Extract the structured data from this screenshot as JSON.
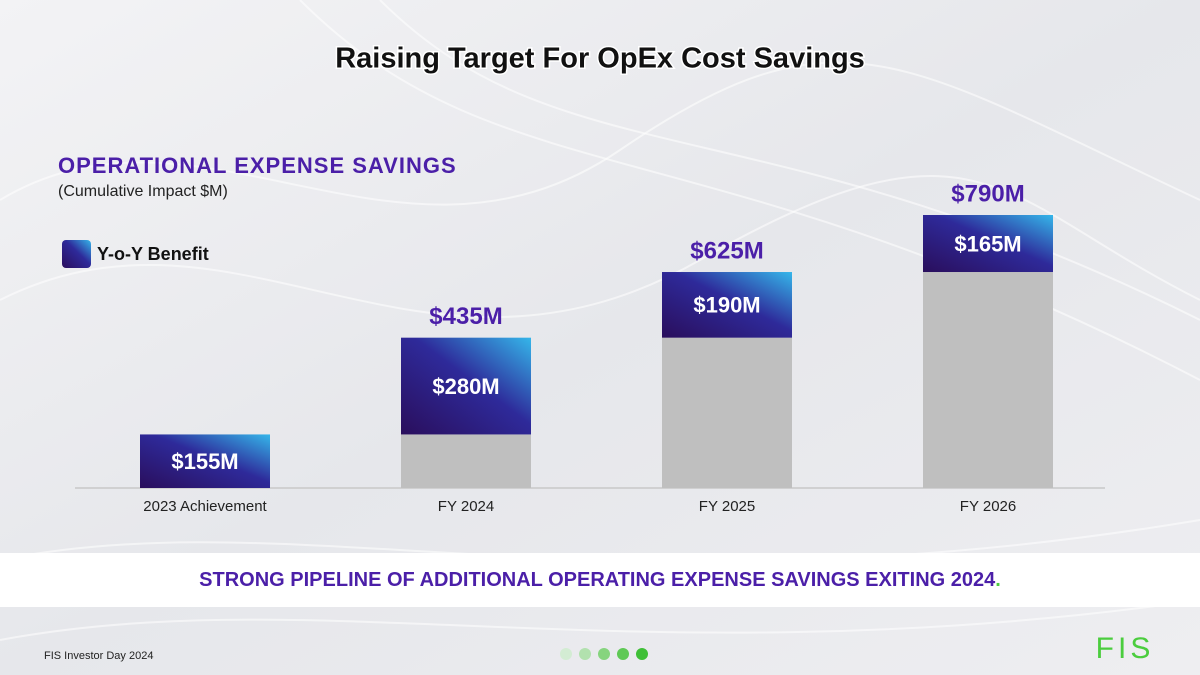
{
  "chart_data": {
    "type": "stacked_bar",
    "title": "Raising Target For OpEx Cost Savings",
    "subtitle": "OPERATIONAL EXPENSE SAVINGS",
    "note": "(Cumulative Impact $M)",
    "categories": [
      "2023 Achievement",
      "FY 2024",
      "FY 2025",
      "FY 2026"
    ],
    "series": [
      {
        "color": "#bfbfbf",
        "values": [
          0,
          155,
          435,
          625
        ]
      },
      {
        "name": "Y-o-Y Benefit",
        "color": "#2e2a9a",
        "values": [
          155,
          280,
          190,
          165
        ],
        "value_labels": [
          "$155M",
          "$280M",
          "$190M",
          "$165M"
        ]
      }
    ],
    "totals": {
      "values": [
        null,
        435,
        625,
        790
      ],
      "value_labels": [
        null,
        "$435M",
        "$625M",
        "$790M"
      ]
    }
  },
  "banner": {
    "text": "STRONG PIPELINE OF ADDITIONAL OPERATING EXPENSE SAVINGS EXITING 2024",
    "punct": "."
  },
  "footer": {
    "text": "FIS Investor Day 2024",
    "logo": "FIS"
  }
}
